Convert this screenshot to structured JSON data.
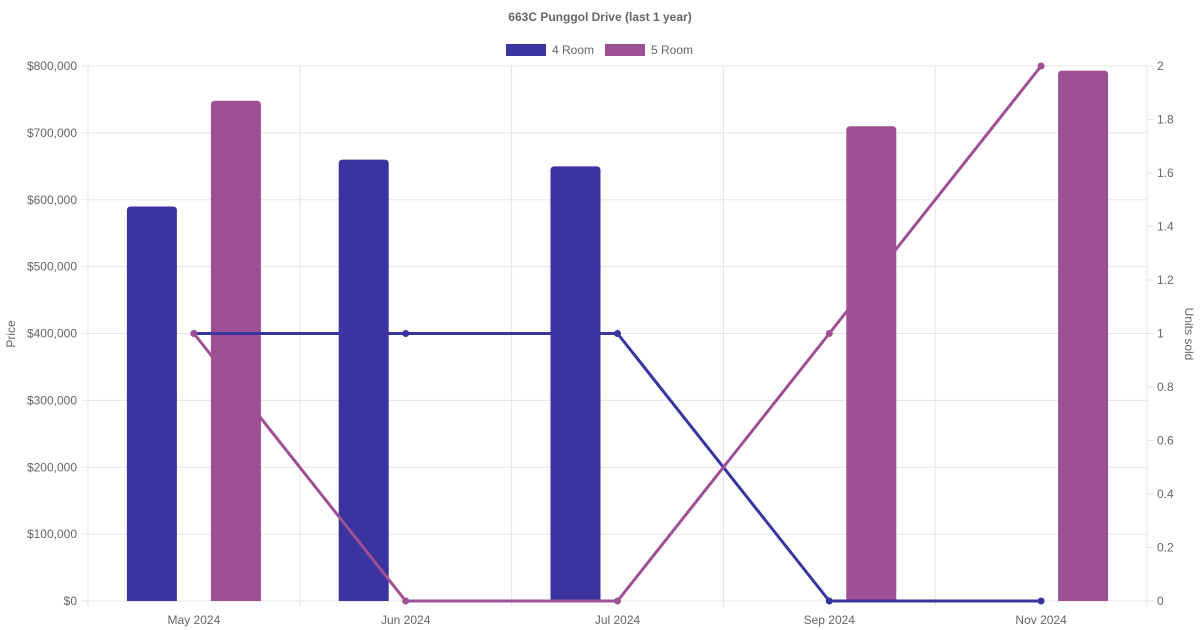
{
  "chart_data": {
    "type": "bar",
    "title": "663C Punggol Drive (last 1 year)",
    "categories": [
      "May 2024",
      "Jun 2024",
      "Jul 2024",
      "Sep 2024",
      "Nov 2024"
    ],
    "ylabel": "Price",
    "y2label": "Units sold",
    "ylim": [
      0,
      800000
    ],
    "y2lim": [
      0,
      2
    ],
    "y_ticks": [
      "$0",
      "$100,000",
      "$200,000",
      "$300,000",
      "$400,000",
      "$500,000",
      "$600,000",
      "$700,000",
      "$800,000"
    ],
    "y2_ticks": [
      "0",
      "0.2",
      "0.4",
      "0.6",
      "0.8",
      "1",
      "1.2",
      "1.4",
      "1.6",
      "1.8",
      "2"
    ],
    "grid": true,
    "legend": "top-center",
    "series": [
      {
        "name": "4 Room",
        "color": "#3a33a0",
        "price": [
          590000,
          660000,
          650000,
          null,
          null
        ],
        "units_sold": [
          1,
          1,
          1,
          0,
          0
        ]
      },
      {
        "name": "5 Room",
        "color": "#9e5094",
        "price": [
          748000,
          null,
          null,
          710000,
          793000
        ],
        "units_sold": [
          1,
          0,
          0,
          1,
          2
        ]
      }
    ]
  }
}
